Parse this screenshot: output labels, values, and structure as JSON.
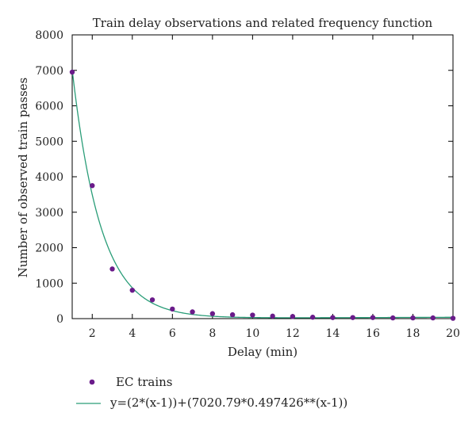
{
  "chart_data": {
    "type": "scatter",
    "title": "Train delay observations and related frequency function",
    "xlabel": "Delay (min)",
    "ylabel": "Number of observed train passes",
    "xlim": [
      1,
      20
    ],
    "ylim": [
      0,
      8000
    ],
    "x_ticks": [
      2,
      4,
      6,
      8,
      10,
      12,
      14,
      16,
      18,
      20
    ],
    "y_ticks": [
      0,
      1000,
      2000,
      3000,
      4000,
      5000,
      6000,
      7000,
      8000
    ],
    "grid": false,
    "legend_position": "bottom",
    "series": [
      {
        "name": "EC trains",
        "type": "scatter",
        "color": "#6a1b8a",
        "x": [
          1,
          2,
          3,
          4,
          5,
          6,
          7,
          8,
          9,
          10,
          11,
          12,
          13,
          14,
          15,
          16,
          17,
          18,
          19,
          20
        ],
        "y": [
          6950,
          3750,
          1400,
          800,
          530,
          270,
          190,
          140,
          110,
          100,
          70,
          60,
          40,
          30,
          30,
          30,
          20,
          20,
          20,
          10
        ]
      },
      {
        "name": "y=(2*(x-1))+(7020.79*0.497426**(x-1))",
        "type": "line",
        "color": "#2a9d78",
        "function": {
          "linear_coefficient": 2,
          "amplitude": 7020.79,
          "base": 0.497426,
          "shift": 1
        }
      }
    ]
  }
}
